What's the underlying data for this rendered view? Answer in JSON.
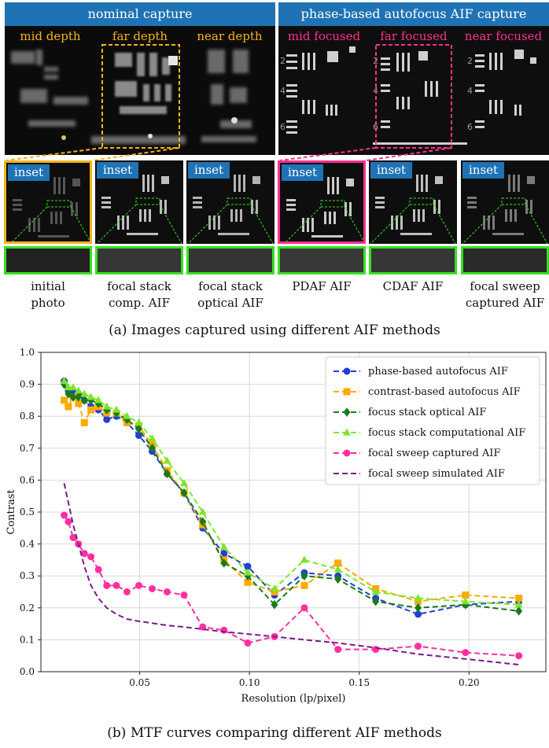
{
  "top_figure": {
    "left_panel": {
      "header": "nominal capture",
      "labels": [
        "mid depth",
        "far depth",
        "near depth"
      ]
    },
    "right_panel": {
      "header": "phase-based autofocus AIF capture",
      "labels": [
        "mid focused",
        "far focused",
        "near focused"
      ]
    },
    "inset_label": "inset",
    "thumbnails": [
      {
        "caption_line1": "initial",
        "caption_line2": "photo"
      },
      {
        "caption_line1": "focal stack",
        "caption_line2": "comp. AIF"
      },
      {
        "caption_line1": "focal stack",
        "caption_line2": "optical AIF"
      },
      {
        "caption_line1": "PDAF AIF",
        "caption_line2": ""
      },
      {
        "caption_line1": "CDAF AIF",
        "caption_line2": ""
      },
      {
        "caption_line1": "focal sweep",
        "caption_line2": "captured AIF"
      }
    ],
    "caption": "(a) Images captured using different AIF methods",
    "colors": {
      "header_bg": "#1f73b4",
      "yellow": "#f5b31b",
      "pink": "#ff2f8e",
      "green": "#36e021"
    }
  },
  "chart_caption": "(b) MTF curves comparing different AIF methods",
  "chart_data": {
    "type": "line",
    "title": "",
    "xlabel": "Resolution (lp/pixel)",
    "ylabel": "Contrast",
    "xlim": [
      0.005,
      0.235
    ],
    "ylim": [
      0.0,
      1.0
    ],
    "xticks": [
      0.05,
      0.1,
      0.15,
      0.2
    ],
    "xtick_labels": [
      "0.05",
      "0.10",
      "0.15",
      "0.20"
    ],
    "yticks": [
      0.0,
      0.1,
      0.2,
      0.3,
      0.4,
      0.5,
      0.6,
      0.7,
      0.8,
      0.9,
      1.0
    ],
    "ytick_labels": [
      "0.0",
      "0.1",
      "0.2",
      "0.3",
      "0.4",
      "0.5",
      "0.6",
      "0.7",
      "0.8",
      "0.9",
      "1.0"
    ],
    "grid": true,
    "legend_position": "top-right",
    "series": [
      {
        "name": "phase-based autofocus AIF",
        "color": "#1f3fd6",
        "marker": "circle",
        "dash": true,
        "x": [
          0.0156,
          0.0175,
          0.0197,
          0.0221,
          0.0248,
          0.0278,
          0.0312,
          0.035,
          0.0394,
          0.0442,
          0.0496,
          0.0557,
          0.0625,
          0.0702,
          0.0787,
          0.0884,
          0.0992,
          0.1114,
          0.125,
          0.1403,
          0.1575,
          0.1768,
          0.1984,
          0.2227
        ],
        "y": [
          0.91,
          0.88,
          0.88,
          0.87,
          0.85,
          0.83,
          0.82,
          0.79,
          0.8,
          0.78,
          0.74,
          0.69,
          0.62,
          0.56,
          0.45,
          0.37,
          0.33,
          0.24,
          0.31,
          0.3,
          0.23,
          0.18,
          0.21,
          0.22
        ]
      },
      {
        "name": "contrast-based autofocus AIF",
        "color": "#ffaa00",
        "marker": "square",
        "dash": true,
        "x": [
          0.0156,
          0.0175,
          0.0197,
          0.0221,
          0.0248,
          0.0278,
          0.0312,
          0.035,
          0.0394,
          0.0442,
          0.0496,
          0.0557,
          0.0625,
          0.0702,
          0.0787,
          0.0884,
          0.0992,
          0.1114,
          0.125,
          0.1403,
          0.1575,
          0.1768,
          0.1984,
          0.2227
        ],
        "y": [
          0.85,
          0.83,
          0.86,
          0.84,
          0.78,
          0.82,
          0.83,
          0.81,
          0.81,
          0.78,
          0.77,
          0.71,
          0.63,
          0.56,
          0.46,
          0.35,
          0.28,
          0.25,
          0.27,
          0.34,
          0.26,
          0.22,
          0.24,
          0.23
        ]
      },
      {
        "name": "focus stack optical AIF",
        "color": "#1b7a1b",
        "marker": "diamond",
        "dash": true,
        "x": [
          0.0156,
          0.0175,
          0.0197,
          0.0221,
          0.0248,
          0.0278,
          0.0312,
          0.035,
          0.0394,
          0.0442,
          0.0496,
          0.0557,
          0.0625,
          0.0702,
          0.0787,
          0.0884,
          0.0992,
          0.1114,
          0.125,
          0.1403,
          0.1575,
          0.1768,
          0.1984,
          0.2227
        ],
        "y": [
          0.9,
          0.87,
          0.86,
          0.86,
          0.85,
          0.85,
          0.84,
          0.82,
          0.81,
          0.79,
          0.76,
          0.7,
          0.62,
          0.56,
          0.47,
          0.34,
          0.3,
          0.21,
          0.3,
          0.29,
          0.22,
          0.2,
          0.21,
          0.19
        ]
      },
      {
        "name": "focus stack computational AIF",
        "color": "#7de52a",
        "marker": "triangle",
        "dash": true,
        "x": [
          0.0156,
          0.0175,
          0.0197,
          0.0221,
          0.0248,
          0.0278,
          0.0312,
          0.035,
          0.0394,
          0.0442,
          0.0496,
          0.0557,
          0.0625,
          0.0702,
          0.0787,
          0.0884,
          0.0992,
          0.1114,
          0.125,
          0.1403,
          0.1575,
          0.1768,
          0.1984,
          0.2227
        ],
        "y": [
          0.91,
          0.89,
          0.89,
          0.88,
          0.87,
          0.86,
          0.85,
          0.83,
          0.82,
          0.8,
          0.78,
          0.73,
          0.66,
          0.59,
          0.5,
          0.39,
          0.31,
          0.26,
          0.35,
          0.32,
          0.25,
          0.23,
          0.22,
          0.21
        ]
      },
      {
        "name": "focal sweep captured AIF",
        "color": "#ff2fa0",
        "marker": "circle",
        "dash": true,
        "x": [
          0.0156,
          0.0175,
          0.0197,
          0.0221,
          0.0248,
          0.0278,
          0.0312,
          0.035,
          0.0394,
          0.0442,
          0.0496,
          0.0557,
          0.0625,
          0.0702,
          0.0787,
          0.0884,
          0.0992,
          0.1114,
          0.125,
          0.1403,
          0.1575,
          0.1768,
          0.1984,
          0.2227
        ],
        "y": [
          0.49,
          0.47,
          0.42,
          0.4,
          0.37,
          0.36,
          0.32,
          0.27,
          0.27,
          0.25,
          0.27,
          0.26,
          0.25,
          0.24,
          0.14,
          0.13,
          0.09,
          0.11,
          0.2,
          0.07,
          0.07,
          0.08,
          0.06,
          0.05
        ]
      },
      {
        "name": "focal sweep simulated AIF",
        "color": "#7a1a8a",
        "marker": "none",
        "dash": true,
        "x": [
          0.0156,
          0.0175,
          0.0197,
          0.0221,
          0.0248,
          0.0278,
          0.0312,
          0.035,
          0.0394,
          0.0442,
          0.0496,
          0.0557,
          0.0625,
          0.0702,
          0.0787,
          0.0884,
          0.0992,
          0.1114,
          0.125,
          0.1403,
          0.1575,
          0.1768,
          0.1984,
          0.2227
        ],
        "y": [
          0.59,
          0.53,
          0.46,
          0.4,
          0.33,
          0.27,
          0.23,
          0.2,
          0.18,
          0.165,
          0.158,
          0.152,
          0.145,
          0.14,
          0.133,
          0.125,
          0.118,
          0.11,
          0.1,
          0.09,
          0.075,
          0.055,
          0.04,
          0.022
        ]
      }
    ]
  }
}
